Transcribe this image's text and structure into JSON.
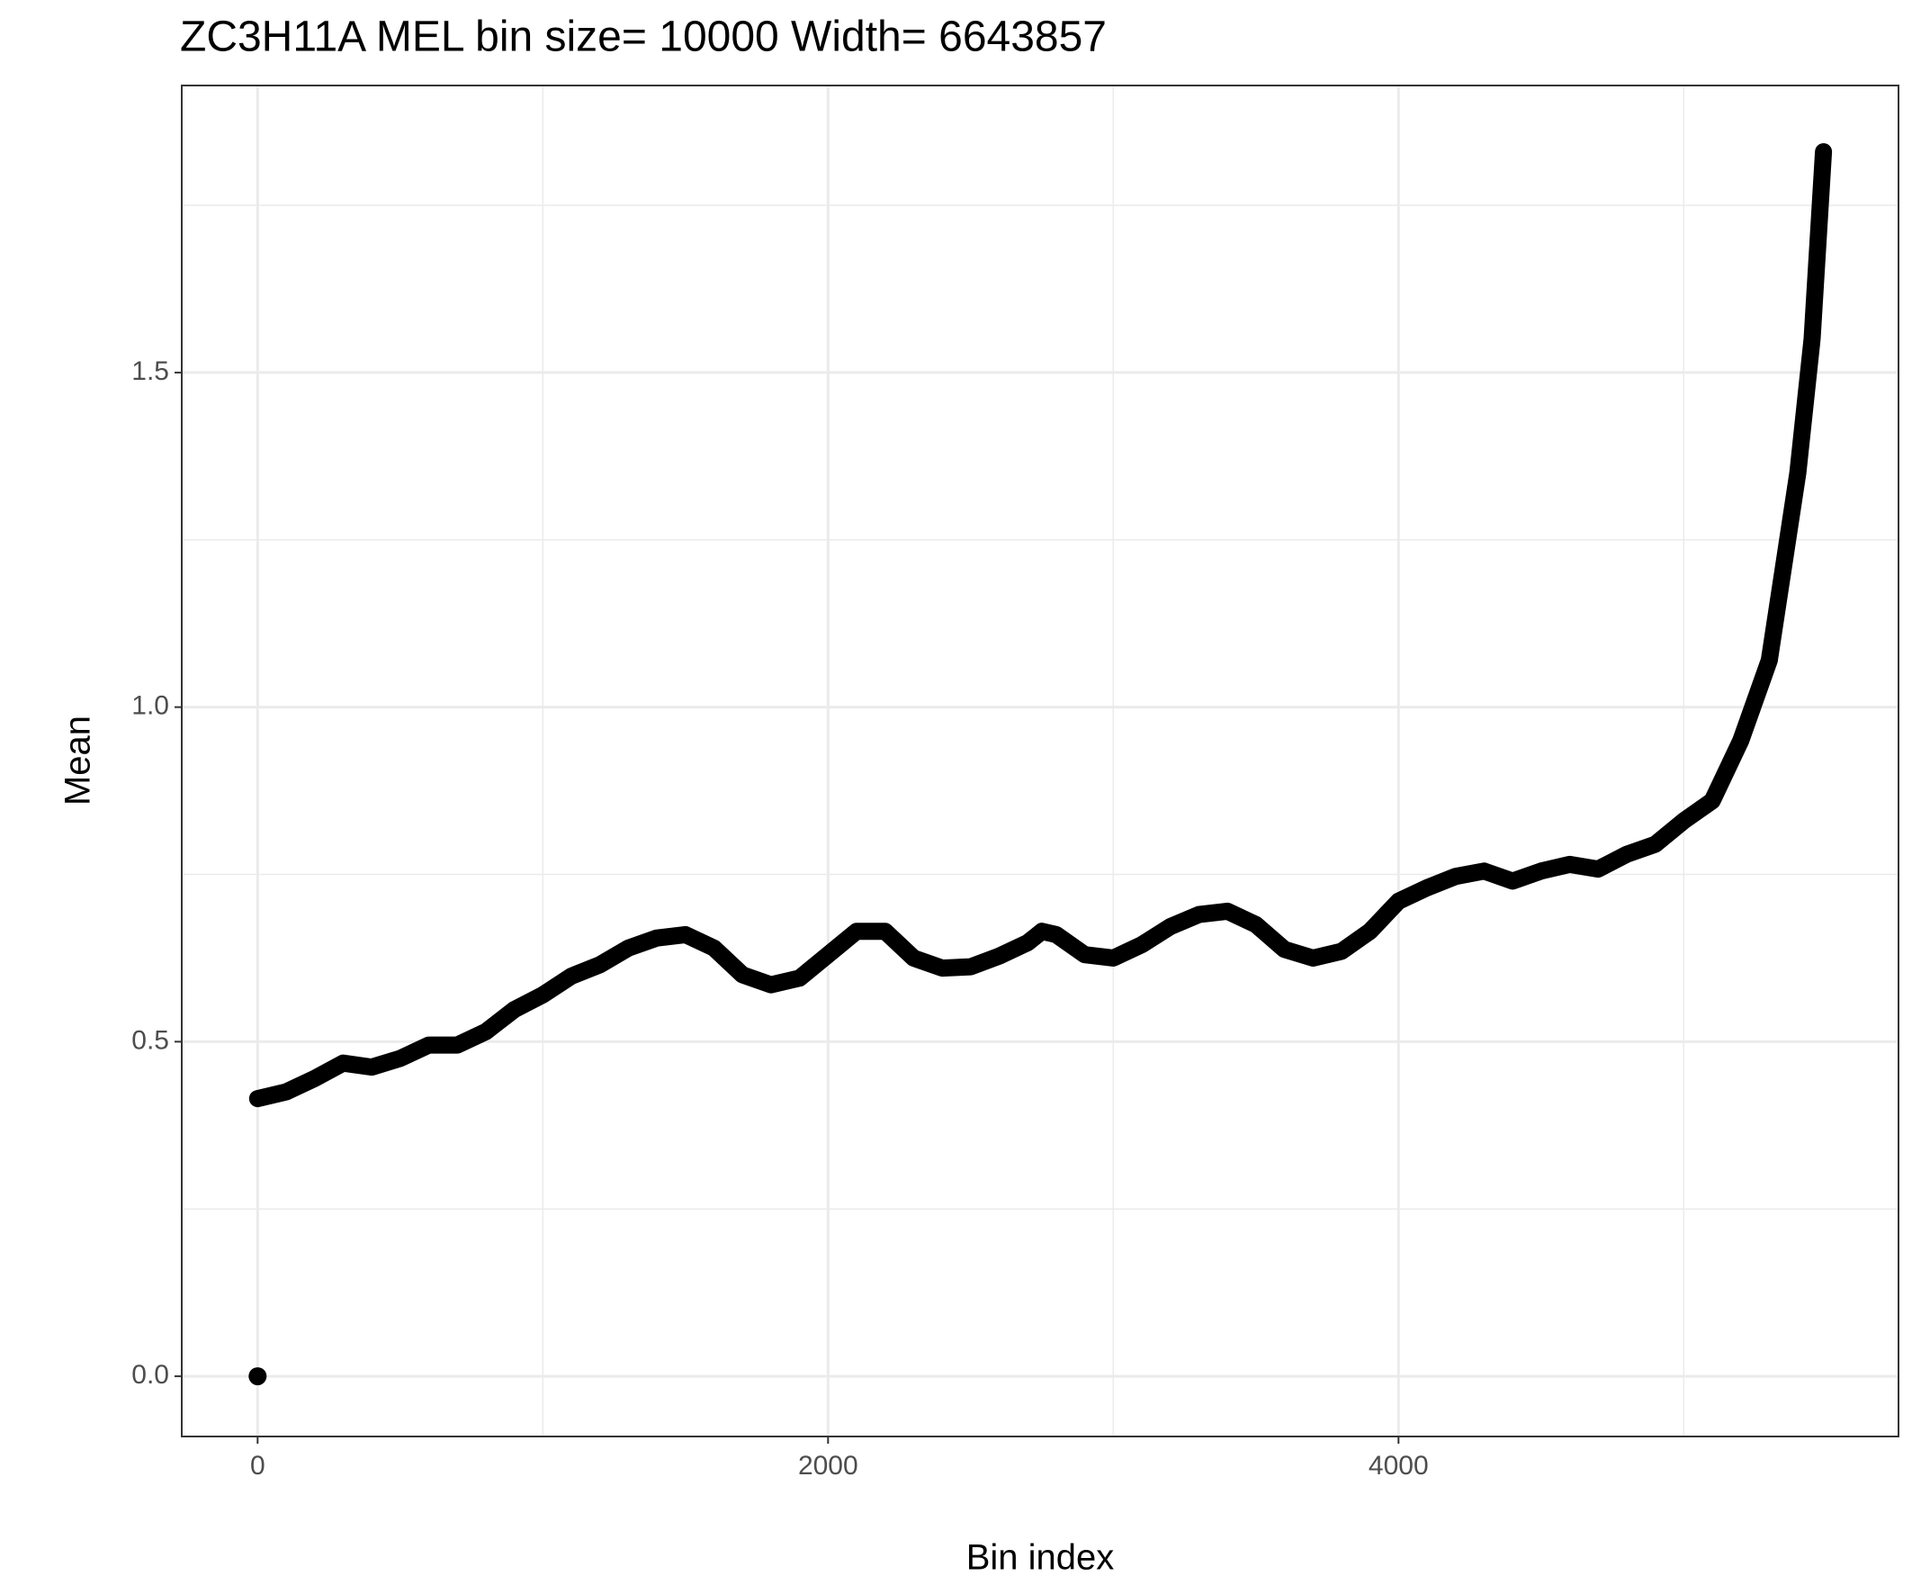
{
  "chart_data": {
    "type": "scatter",
    "title": "ZC3H11A MEL  bin size=  10000  Width=  6643857",
    "x_label": "Bin index",
    "y_label": "Mean",
    "xlim": [
      -266,
      5753
    ],
    "ylim": [
      -0.09,
      1.929
    ],
    "xticks": [
      0,
      2000,
      4000
    ],
    "yticks": [
      {
        "value": 0,
        "label": "0.0"
      },
      0.5,
      {
        "value": 1,
        "label": "1.0"
      },
      1.5
    ],
    "minor_xticks": [
      1000,
      3000,
      5000
    ],
    "minor_yticks": [
      0.25,
      0.75,
      1.25,
      1.75
    ],
    "grid": true,
    "series": [
      {
        "style": "points",
        "color": "#000000",
        "x": [
          0
        ],
        "values": [
          0
        ]
      },
      {
        "style": "line",
        "color": "#000000",
        "x": [
          0,
          100,
          200,
          300,
          400,
          500,
          600,
          700,
          800,
          900,
          1000,
          1100,
          1200,
          1300,
          1400,
          1500,
          1600,
          1700,
          1800,
          1900,
          2000,
          2100,
          2200,
          2300,
          2400,
          2500,
          2600,
          2700,
          2750,
          2800,
          2900,
          3000,
          3100,
          3200,
          3300,
          3400,
          3500,
          3600,
          3700,
          3800,
          3900,
          4000,
          4100,
          4200,
          4300,
          4400,
          4500,
          4600,
          4700,
          4800,
          4900,
          5000,
          5050,
          5100,
          5200,
          5300,
          5400,
          5450,
          5490
        ],
        "values": [
          0.415,
          0.425,
          0.445,
          0.468,
          0.462,
          0.475,
          0.495,
          0.495,
          0.515,
          0.548,
          0.57,
          0.598,
          0.615,
          0.64,
          0.655,
          0.66,
          0.64,
          0.6,
          0.585,
          0.595,
          0.63,
          0.665,
          0.665,
          0.625,
          0.61,
          0.612,
          0.628,
          0.648,
          0.665,
          0.66,
          0.63,
          0.625,
          0.645,
          0.672,
          0.69,
          0.695,
          0.675,
          0.638,
          0.625,
          0.635,
          0.665,
          0.71,
          0.73,
          0.747,
          0.755,
          0.74,
          0.755,
          0.765,
          0.758,
          0.78,
          0.795,
          0.83,
          0.845,
          0.86,
          0.95,
          1.07,
          1.35,
          1.55,
          1.83
        ]
      }
    ]
  }
}
